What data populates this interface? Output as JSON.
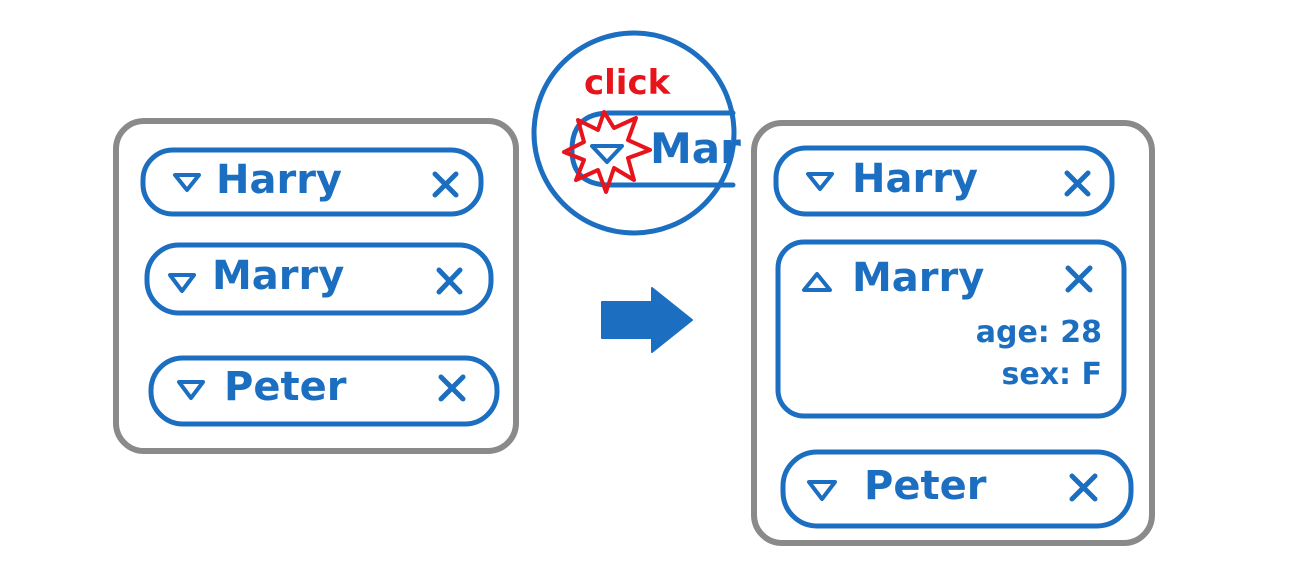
{
  "diagram": {
    "colors": {
      "primary": "#1c6fc0",
      "frame": "#8a8a8a",
      "accent": "#e8141c"
    },
    "before": {
      "items": [
        {
          "name": "Harry",
          "toggle_icon": "caret-down-icon",
          "remove_icon": "close-icon"
        },
        {
          "name": "Marry",
          "toggle_icon": "caret-down-icon",
          "remove_icon": "close-icon"
        },
        {
          "name": "Peter",
          "toggle_icon": "caret-down-icon",
          "remove_icon": "close-icon"
        }
      ]
    },
    "zoom": {
      "action_label": "click",
      "partial_name": "Mar",
      "burst_icon": "starburst-icon",
      "toggle_icon": "caret-down-icon"
    },
    "transition_icon": "arrow-right-icon",
    "after": {
      "items": [
        {
          "name": "Harry",
          "toggle_icon": "caret-down-icon",
          "remove_icon": "close-icon"
        },
        {
          "name": "Marry",
          "toggle_icon": "caret-up-icon",
          "remove_icon": "close-icon",
          "details": {
            "age": "age: 28",
            "sex": "sex: F"
          }
        },
        {
          "name": "Peter",
          "toggle_icon": "caret-down-icon",
          "remove_icon": "close-icon"
        }
      ]
    }
  }
}
